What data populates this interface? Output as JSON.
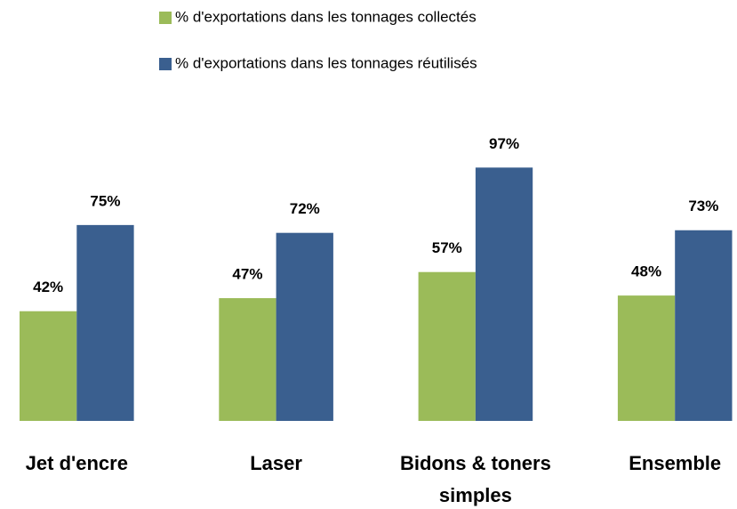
{
  "chart_data": {
    "type": "bar",
    "categories": [
      "Jet d'encre",
      "Laser",
      "Bidons & toners simples",
      "Ensemble"
    ],
    "series": [
      {
        "name": "% d'exportations dans les tonnages collectés",
        "color": "#9bbb59",
        "values": [
          42,
          47,
          57,
          48
        ],
        "value_labels": [
          "42%",
          "47%",
          "57%",
          "48%"
        ]
      },
      {
        "name": "% d'exportations dans les tonnages réutilisés",
        "color": "#3a5f8f",
        "values": [
          75,
          72,
          97,
          73
        ],
        "value_labels": [
          "75%",
          "72%",
          "97%",
          "73%"
        ]
      }
    ]
  }
}
